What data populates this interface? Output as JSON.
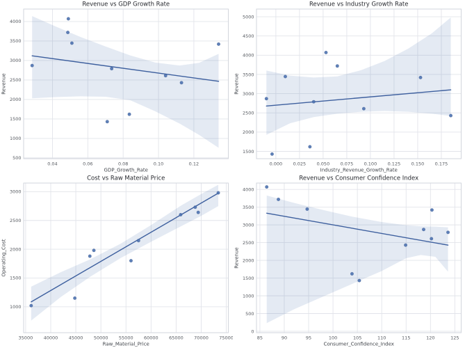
{
  "figure": {
    "background": "#ffffff",
    "style": "seaborn-whitegrid"
  },
  "colors": {
    "point": "#4c72b0",
    "point_edge": "#35548c",
    "trend_line": "#3d5f9e",
    "band": "#4c72b0",
    "band_opacity": 0.15,
    "grid": "#e2e4ea",
    "spine": "#d2d5dc",
    "title_text": "#26282e",
    "tick_text": "#55595f",
    "axis_label_text": "#41454b"
  },
  "chart_data": [
    {
      "id": "revenue-vs-gdp",
      "type": "scatter",
      "title": "Revenue vs GDP Growth Rate",
      "xlabel": "GDP_Growth_Rate",
      "ylabel": "Revenue",
      "xlim": [
        0.0237,
        0.1395
      ],
      "ylim": [
        480,
        4320
      ],
      "xticks": [
        0.04,
        0.06,
        0.08,
        0.1,
        0.12
      ],
      "xtick_labels": [
        "0.04",
        "0.06",
        "0.08",
        "0.10",
        "0.12"
      ],
      "yticks": [
        500,
        1000,
        1500,
        2000,
        2500,
        3000,
        3500,
        4000
      ],
      "ytick_labels": [
        "500",
        "1000",
        "1500",
        "2000",
        "2500",
        "3000",
        "3500",
        "4000"
      ],
      "grid": true,
      "legend": null,
      "points": [
        [
          0.0285,
          2870
        ],
        [
          0.049,
          4070
        ],
        [
          0.0487,
          3720
        ],
        [
          0.051,
          3445
        ],
        [
          0.071,
          1430
        ],
        [
          0.0735,
          2790
        ],
        [
          0.0835,
          1620
        ],
        [
          0.104,
          2610
        ],
        [
          0.113,
          2430
        ],
        [
          0.134,
          3420
        ]
      ],
      "trend": {
        "x": [
          0.0285,
          0.134
        ],
        "y": [
          3120,
          2465
        ]
      },
      "band": [
        [
          0.0285,
          2030,
          4140
        ],
        [
          0.042,
          2060,
          3870
        ],
        [
          0.056,
          2080,
          3600
        ],
        [
          0.07,
          2070,
          3360
        ],
        [
          0.084,
          1980,
          3130
        ],
        [
          0.098,
          1700,
          2950
        ],
        [
          0.112,
          1380,
          2870
        ],
        [
          0.123,
          1090,
          2940
        ],
        [
          0.134,
          760,
          3170
        ]
      ]
    },
    {
      "id": "revenue-vs-industry",
      "type": "scatter",
      "title": "Revenue vs Industry Growth Rate",
      "xlabel": "Industry_Revenue_Growth_Rate",
      "ylabel": "Revenue",
      "xlim": [
        -0.0205,
        0.196
      ],
      "ylim": [
        1310,
        5200
      ],
      "xticks": [
        0.0,
        0.025,
        0.05,
        0.075,
        0.1,
        0.125,
        0.15,
        0.175
      ],
      "xtick_labels": [
        "0.000",
        "0.025",
        "0.050",
        "0.075",
        "0.100",
        "0.125",
        "0.150",
        "0.175"
      ],
      "yticks": [
        1500,
        2000,
        2500,
        3000,
        3500,
        4000,
        4500,
        5000
      ],
      "ytick_labels": [
        "1500",
        "2000",
        "2500",
        "3000",
        "3500",
        "4000",
        "4500",
        "5000"
      ],
      "grid": true,
      "legend": null,
      "points": [
        [
          -0.01,
          2870
        ],
        [
          -0.004,
          1430
        ],
        [
          0.01,
          3445
        ],
        [
          0.036,
          1620
        ],
        [
          0.04,
          2790
        ],
        [
          0.053,
          4070
        ],
        [
          0.065,
          3720
        ],
        [
          0.093,
          2610
        ],
        [
          0.153,
          3420
        ],
        [
          0.185,
          2430
        ]
      ],
      "trend": {
        "x": [
          -0.01,
          0.185
        ],
        "y": [
          2680,
          3100
        ]
      },
      "band": [
        [
          -0.01,
          1930,
          3600
        ],
        [
          0.015,
          2230,
          3470
        ],
        [
          0.04,
          2390,
          3420
        ],
        [
          0.065,
          2480,
          3450
        ],
        [
          0.09,
          2530,
          3610
        ],
        [
          0.115,
          2550,
          3850
        ],
        [
          0.14,
          2530,
          4170
        ],
        [
          0.165,
          2480,
          4570
        ],
        [
          0.185,
          2420,
          4980
        ]
      ]
    },
    {
      "id": "cost-vs-raw-material",
      "type": "scatter",
      "title": "Cost vs Raw Material Price",
      "xlabel": "Raw_Material_Price",
      "ylabel": "Operating_Cost",
      "xlim": [
        34600,
        75400
      ],
      "ylim": [
        550,
        3150
      ],
      "xticks": [
        35000,
        40000,
        45000,
        50000,
        55000,
        60000,
        65000,
        70000,
        75000
      ],
      "xtick_labels": [
        "35000",
        "40000",
        "45000",
        "50000",
        "55000",
        "60000",
        "65000",
        "70000",
        "75000"
      ],
      "yticks": [
        1000,
        1500,
        2000,
        2500,
        3000
      ],
      "ytick_labels": [
        "1000",
        "1500",
        "2000",
        "2500",
        "3000"
      ],
      "grid": true,
      "legend": null,
      "points": [
        [
          36100,
          1020
        ],
        [
          44800,
          1150
        ],
        [
          47800,
          1880
        ],
        [
          48600,
          1980
        ],
        [
          56000,
          1800
        ],
        [
          57500,
          2150
        ],
        [
          65900,
          2600
        ],
        [
          68800,
          2730
        ],
        [
          69400,
          2640
        ],
        [
          73400,
          2980
        ]
      ],
      "trend": {
        "x": [
          36100,
          73400
        ],
        "y": [
          1085,
          2975
        ]
      },
      "band": [
        [
          36100,
          760,
          1350
        ],
        [
          42000,
          1170,
          1600
        ],
        [
          48000,
          1530,
          1830
        ],
        [
          54000,
          1850,
          2100
        ],
        [
          60000,
          2130,
          2420
        ],
        [
          66000,
          2400,
          2760
        ],
        [
          70000,
          2580,
          2960
        ],
        [
          73400,
          2750,
          3120
        ]
      ]
    },
    {
      "id": "revenue-vs-confidence",
      "type": "scatter",
      "title": "Revenue vs Consumer Confidence Index",
      "xlabel": "Consumer_Confidence_Index",
      "ylabel": "Revenue",
      "xlim": [
        84.3,
        126.3
      ],
      "ylim": [
        -40,
        4180
      ],
      "xticks": [
        85,
        90,
        95,
        100,
        105,
        110,
        115,
        120,
        125
      ],
      "xtick_labels": [
        "85",
        "90",
        "95",
        "100",
        "105",
        "110",
        "115",
        "120",
        "125"
      ],
      "yticks": [
        0,
        500,
        1000,
        1500,
        2000,
        2500,
        3000,
        3500,
        4000
      ],
      "ytick_labels": [
        "0",
        "500",
        "1000",
        "1500",
        "2000",
        "2500",
        "3000",
        "3500",
        "4000"
      ],
      "grid": true,
      "legend": null,
      "points": [
        [
          86.4,
          4070
        ],
        [
          88.8,
          3720
        ],
        [
          94.7,
          3445
        ],
        [
          103.9,
          1620
        ],
        [
          105.4,
          1430
        ],
        [
          114.9,
          2430
        ],
        [
          118.6,
          2870
        ],
        [
          120.3,
          3420
        ],
        [
          120.2,
          2610
        ],
        [
          123.6,
          2790
        ]
      ],
      "trend": {
        "x": [
          86.4,
          123.6
        ],
        "y": [
          3330,
          2430
        ]
      },
      "band": [
        [
          86.4,
          230,
          3830
        ],
        [
          92,
          620,
          3620
        ],
        [
          98,
          980,
          3420
        ],
        [
          104,
          1340,
          3230
        ],
        [
          110,
          1700,
          3080
        ],
        [
          115,
          2060,
          2990
        ],
        [
          118,
          2150,
          2960
        ],
        [
          121,
          2100,
          2950
        ],
        [
          123.6,
          1680,
          2930
        ]
      ]
    }
  ]
}
